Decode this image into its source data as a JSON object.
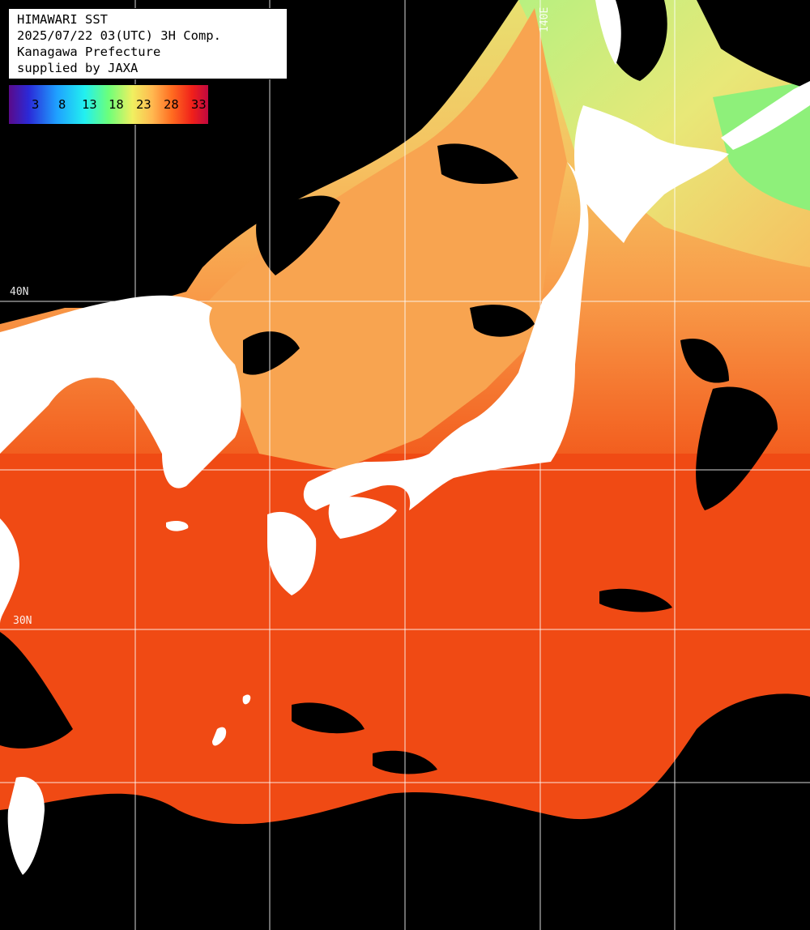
{
  "title_box": {
    "line1": "HIMAWARI SST",
    "line2": "2025/07/22 03(UTC) 3H Comp.",
    "line3": "Kanagawa Prefecture",
    "line4": "supplied by JAXA"
  },
  "legend": {
    "ticks": [
      "3",
      "8",
      "13",
      "18",
      "23",
      "28",
      "33"
    ],
    "colors": {
      "cold": "#5a0a8a",
      "cool": "#1fa0ff",
      "mild": "#6cff7a",
      "warm": "#f0f060",
      "hot": "#f0201a",
      "hottest": "#c00840"
    }
  },
  "grid_labels": {
    "lon_140e": "140E",
    "lat_40n": "40N",
    "lat_30n": "30N"
  },
  "colors": {
    "land": "#ffffff",
    "cloud_no_data": "#000000",
    "warm_sea": "#f04a14",
    "mid_sea": "#f89a48",
    "north_sea": "#e8e070",
    "cold_sea": "#9ef07a",
    "grid": "#ffffff"
  }
}
